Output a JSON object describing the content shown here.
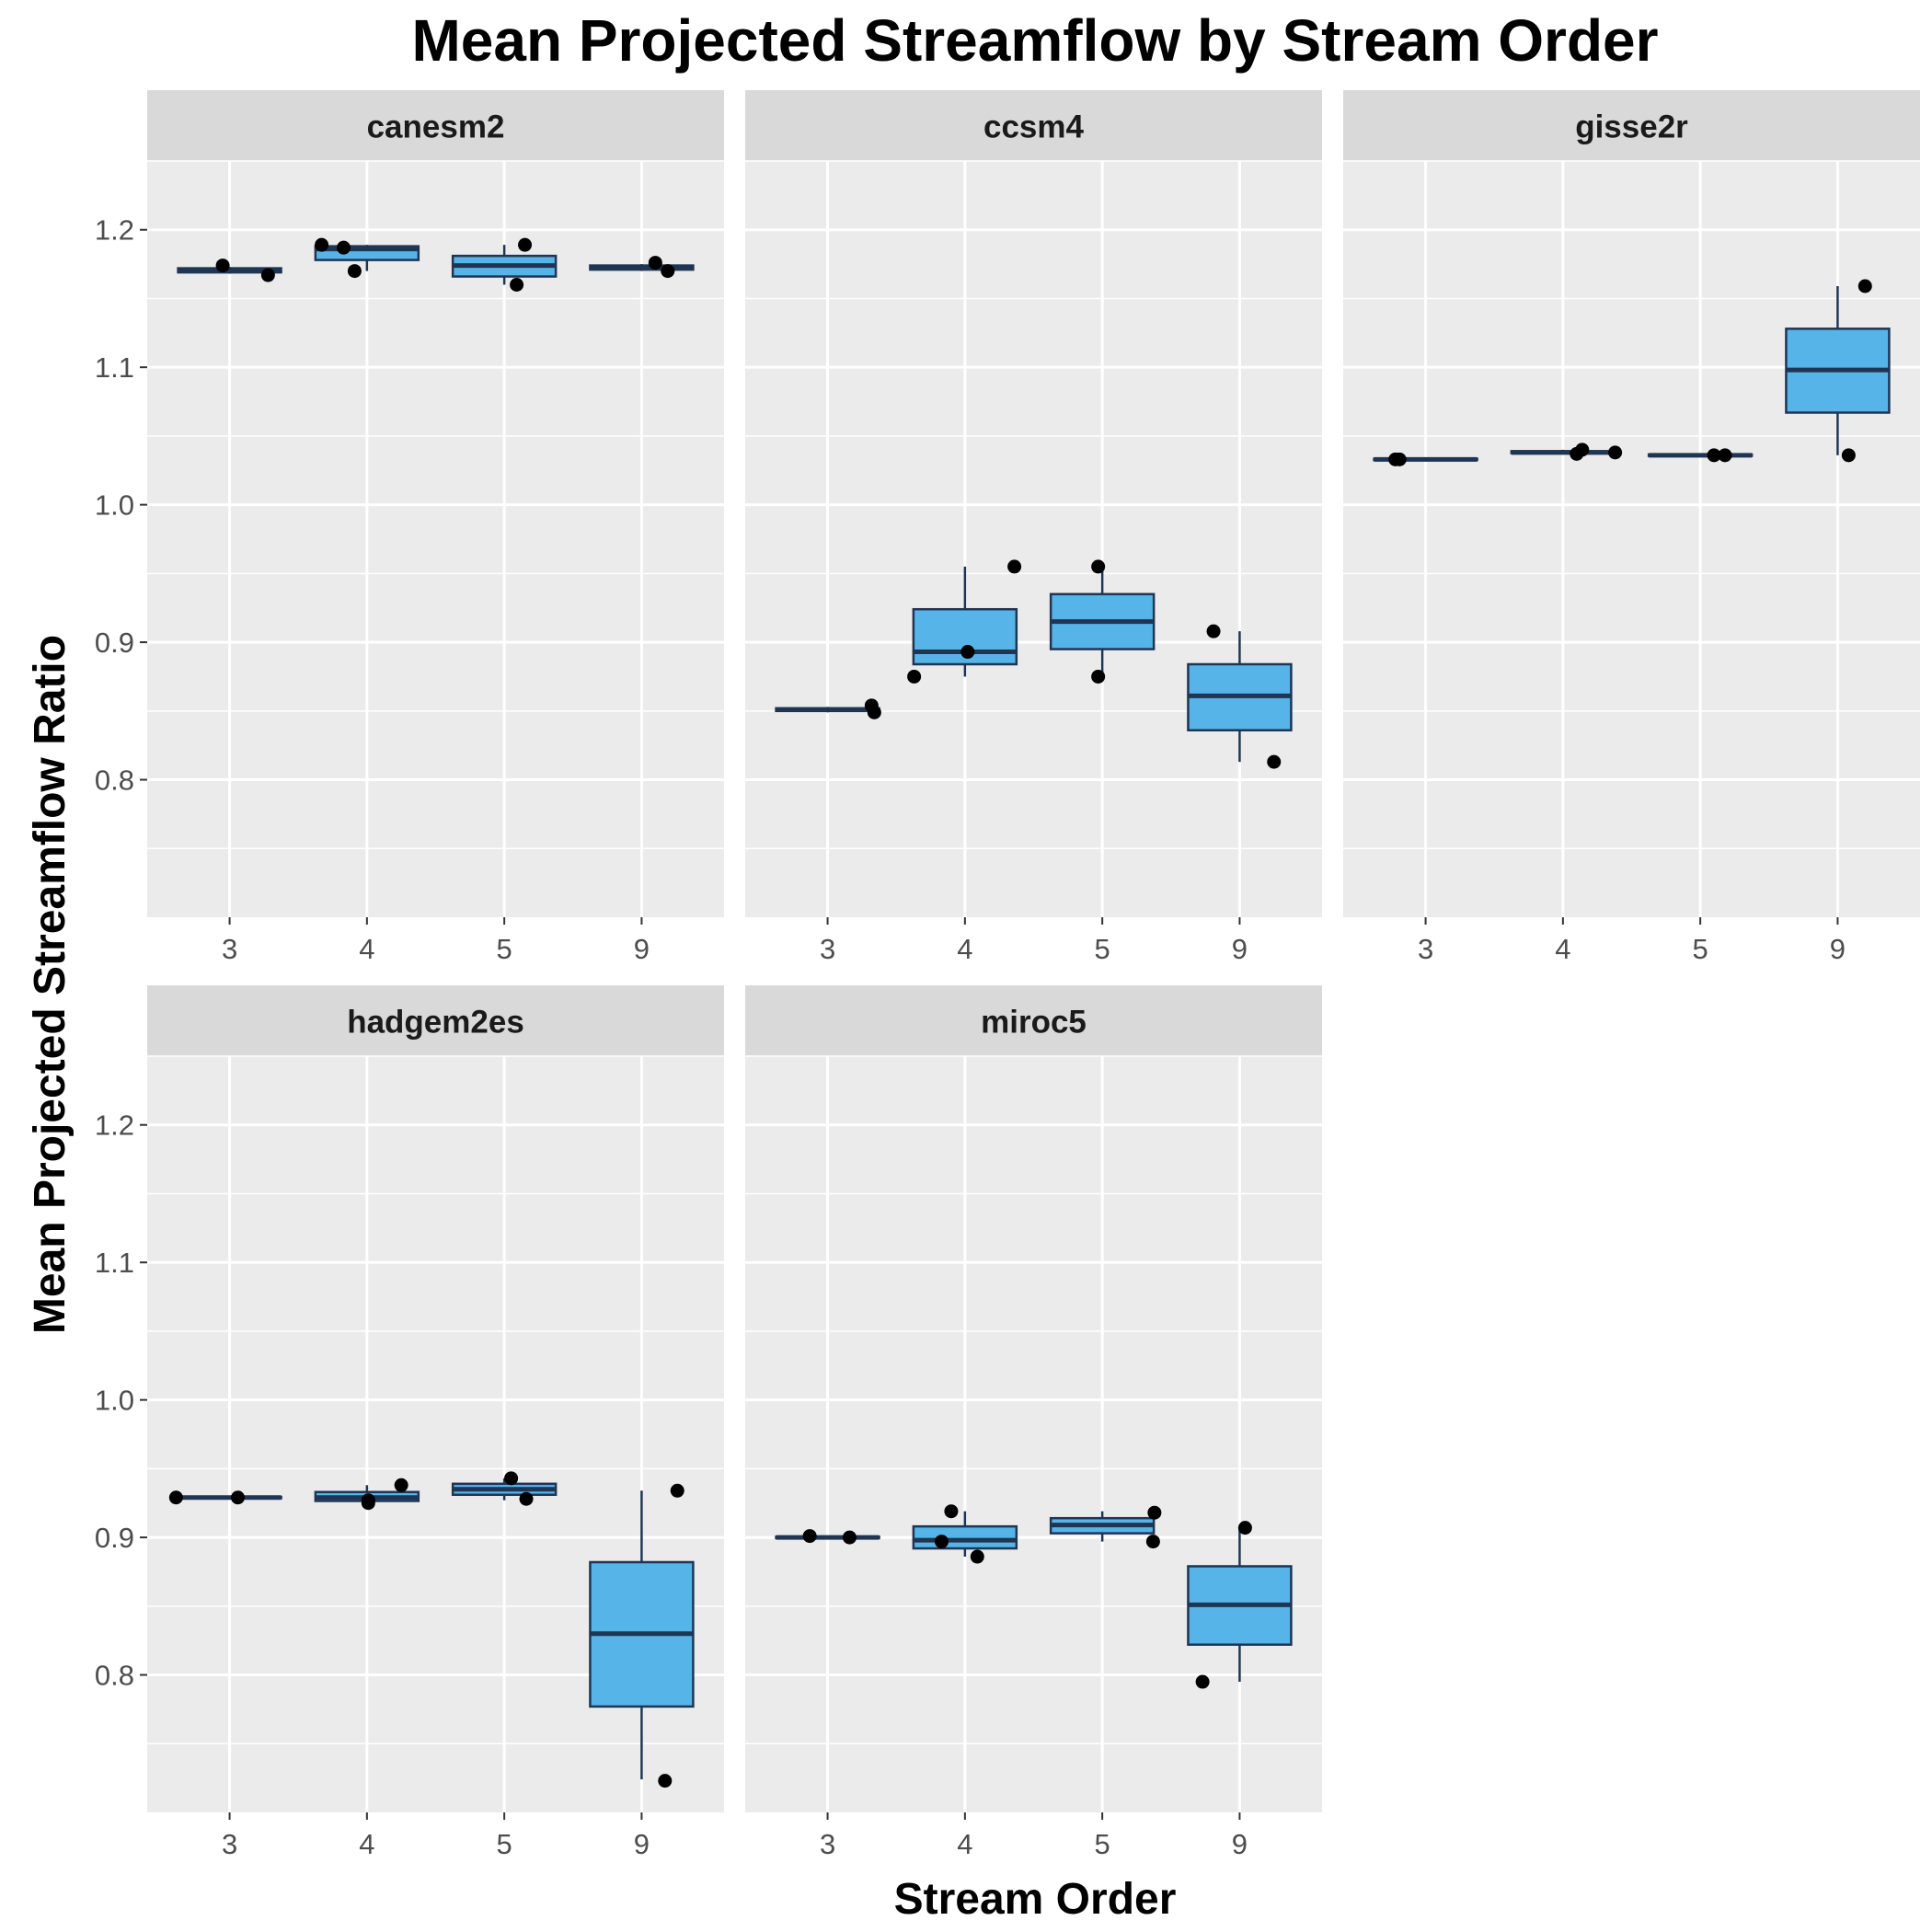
{
  "chart_data": {
    "type": "boxplot",
    "title": "Mean Projected Streamflow by Stream Order",
    "xlabel": "Stream Order",
    "ylabel": "Mean Projected Streamflow Ratio",
    "categories": [
      "3",
      "4",
      "5",
      "9"
    ],
    "ylim": [
      0.7,
      1.25
    ],
    "yticks": [
      0.8,
      0.9,
      1.0,
      1.1,
      1.2
    ],
    "ytick_labels": [
      "0.8",
      "0.9",
      "1.0",
      "1.1",
      "1.2"
    ],
    "grid": true,
    "box_fill": "#56B4E9",
    "box_stroke": "#1f3552",
    "panel_bg": "#ebebeb",
    "strip_bg": "#d9d9d9",
    "panels": [
      {
        "name": "canesm2",
        "boxes": [
          {
            "category": "3",
            "lower_whisker": 1.168,
            "q1": 1.169,
            "median": 1.17,
            "q3": 1.172,
            "upper_whisker": 1.173
          },
          {
            "category": "4",
            "lower_whisker": 1.17,
            "q1": 1.178,
            "median": 1.186,
            "q3": 1.188,
            "upper_whisker": 1.189
          },
          {
            "category": "5",
            "lower_whisker": 1.16,
            "q1": 1.166,
            "median": 1.174,
            "q3": 1.181,
            "upper_whisker": 1.189
          },
          {
            "category": "9",
            "lower_whisker": 1.17,
            "q1": 1.171,
            "median": 1.172,
            "q3": 1.174,
            "upper_whisker": 1.175
          }
        ],
        "points": [
          {
            "category": "3",
            "offset": -0.05,
            "value": 1.174
          },
          {
            "category": "3",
            "offset": 0.28,
            "value": 1.167
          },
          {
            "category": "4",
            "offset": -0.33,
            "value": 1.189
          },
          {
            "category": "4",
            "offset": -0.17,
            "value": 1.187
          },
          {
            "category": "4",
            "offset": -0.09,
            "value": 1.17
          },
          {
            "category": "5",
            "offset": 0.15,
            "value": 1.189
          },
          {
            "category": "5",
            "offset": 0.09,
            "value": 1.16
          },
          {
            "category": "9",
            "offset": 0.1,
            "value": 1.176
          },
          {
            "category": "9",
            "offset": 0.19,
            "value": 1.17
          }
        ]
      },
      {
        "name": "ccsm4",
        "boxes": [
          {
            "category": "3",
            "lower_whisker": 0.849,
            "q1": 0.85,
            "median": 0.851,
            "q3": 0.852,
            "upper_whisker": 0.853
          },
          {
            "category": "4",
            "lower_whisker": 0.875,
            "q1": 0.884,
            "median": 0.893,
            "q3": 0.924,
            "upper_whisker": 0.955
          },
          {
            "category": "5",
            "lower_whisker": 0.875,
            "q1": 0.895,
            "median": 0.915,
            "q3": 0.935,
            "upper_whisker": 0.955
          },
          {
            "category": "9",
            "lower_whisker": 0.813,
            "q1": 0.836,
            "median": 0.861,
            "q3": 0.884,
            "upper_whisker": 0.908
          }
        ],
        "points": [
          {
            "category": "3",
            "offset": 0.32,
            "value": 0.854
          },
          {
            "category": "3",
            "offset": 0.34,
            "value": 0.849
          },
          {
            "category": "4",
            "offset": -0.37,
            "value": 0.875
          },
          {
            "category": "4",
            "offset": 0.02,
            "value": 0.893
          },
          {
            "category": "4",
            "offset": 0.36,
            "value": 0.955
          },
          {
            "category": "5",
            "offset": -0.03,
            "value": 0.955
          },
          {
            "category": "5",
            "offset": -0.03,
            "value": 0.875
          },
          {
            "category": "9",
            "offset": -0.19,
            "value": 0.908
          },
          {
            "category": "9",
            "offset": 0.25,
            "value": 0.813
          }
        ]
      },
      {
        "name": "gisse2r",
        "boxes": [
          {
            "category": "3",
            "lower_whisker": 1.032,
            "q1": 1.0325,
            "median": 1.033,
            "q3": 1.0335,
            "upper_whisker": 1.034
          },
          {
            "category": "4",
            "lower_whisker": 1.037,
            "q1": 1.0375,
            "median": 1.038,
            "q3": 1.039,
            "upper_whisker": 1.04
          },
          {
            "category": "5",
            "lower_whisker": 1.035,
            "q1": 1.0355,
            "median": 1.036,
            "q3": 1.0365,
            "upper_whisker": 1.037
          },
          {
            "category": "9",
            "lower_whisker": 1.036,
            "q1": 1.067,
            "median": 1.098,
            "q3": 1.128,
            "upper_whisker": 1.159
          }
        ],
        "points": [
          {
            "category": "3",
            "offset": -0.22,
            "value": 1.033
          },
          {
            "category": "3",
            "offset": -0.19,
            "value": 1.033
          },
          {
            "category": "4",
            "offset": 0.1,
            "value": 1.037
          },
          {
            "category": "4",
            "offset": 0.14,
            "value": 1.04
          },
          {
            "category": "4",
            "offset": 0.38,
            "value": 1.038
          },
          {
            "category": "5",
            "offset": 0.1,
            "value": 1.036
          },
          {
            "category": "5",
            "offset": 0.18,
            "value": 1.036
          },
          {
            "category": "9",
            "offset": 0.08,
            "value": 1.036
          },
          {
            "category": "9",
            "offset": 0.2,
            "value": 1.159
          }
        ]
      },
      {
        "name": "hadgem2es",
        "boxes": [
          {
            "category": "3",
            "lower_whisker": 0.928,
            "q1": 0.9285,
            "median": 0.929,
            "q3": 0.9295,
            "upper_whisker": 0.93
          },
          {
            "category": "4",
            "lower_whisker": 0.925,
            "q1": 0.9265,
            "median": 0.929,
            "q3": 0.933,
            "upper_whisker": 0.938
          },
          {
            "category": "5",
            "lower_whisker": 0.927,
            "q1": 0.931,
            "median": 0.935,
            "q3": 0.939,
            "upper_whisker": 0.943
          },
          {
            "category": "9",
            "lower_whisker": 0.724,
            "q1": 0.777,
            "median": 0.83,
            "q3": 0.882,
            "upper_whisker": 0.934
          }
        ],
        "points": [
          {
            "category": "3",
            "offset": -0.39,
            "value": 0.929
          },
          {
            "category": "3",
            "offset": 0.06,
            "value": 0.929
          },
          {
            "category": "4",
            "offset": 0.01,
            "value": 0.927
          },
          {
            "category": "4",
            "offset": 0.01,
            "value": 0.925
          },
          {
            "category": "4",
            "offset": 0.25,
            "value": 0.938
          },
          {
            "category": "5",
            "offset": 0.05,
            "value": 0.943
          },
          {
            "category": "5",
            "offset": 0.16,
            "value": 0.928
          },
          {
            "category": "9",
            "offset": 0.17,
            "value": 0.723
          },
          {
            "category": "9",
            "offset": 0.26,
            "value": 0.934
          }
        ]
      },
      {
        "name": "miroc5",
        "boxes": [
          {
            "category": "3",
            "lower_whisker": 0.899,
            "q1": 0.8995,
            "median": 0.9,
            "q3": 0.9005,
            "upper_whisker": 0.901
          },
          {
            "category": "4",
            "lower_whisker": 0.886,
            "q1": 0.892,
            "median": 0.898,
            "q3": 0.908,
            "upper_whisker": 0.919
          },
          {
            "category": "5",
            "lower_whisker": 0.897,
            "q1": 0.903,
            "median": 0.909,
            "q3": 0.914,
            "upper_whisker": 0.919
          },
          {
            "category": "9",
            "lower_whisker": 0.795,
            "q1": 0.822,
            "median": 0.851,
            "q3": 0.879,
            "upper_whisker": 0.907
          }
        ],
        "points": [
          {
            "category": "3",
            "offset": -0.13,
            "value": 0.901
          },
          {
            "category": "3",
            "offset": 0.16,
            "value": 0.9
          },
          {
            "category": "4",
            "offset": -0.17,
            "value": 0.897
          },
          {
            "category": "4",
            "offset": -0.1,
            "value": 0.919
          },
          {
            "category": "4",
            "offset": 0.09,
            "value": 0.886
          },
          {
            "category": "5",
            "offset": 0.38,
            "value": 0.918
          },
          {
            "category": "5",
            "offset": 0.37,
            "value": 0.897
          },
          {
            "category": "9",
            "offset": -0.27,
            "value": 0.795
          },
          {
            "category": "9",
            "offset": 0.04,
            "value": 0.907
          }
        ]
      }
    ]
  }
}
